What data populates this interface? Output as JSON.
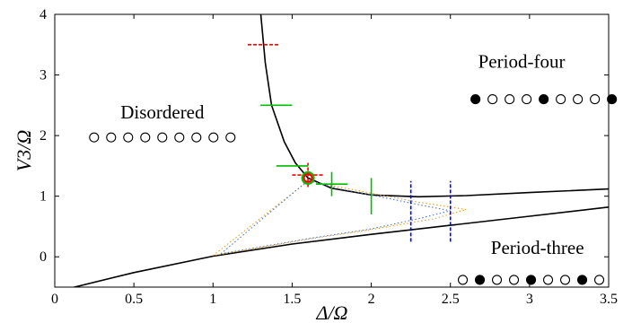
{
  "chart_data": {
    "type": "line",
    "xlabel": "Δ/Ω",
    "ylabel": "V3/Ω",
    "xlim": [
      0,
      3.5
    ],
    "ylim": [
      -0.5,
      4
    ],
    "xticks": [
      "0",
      "0.5",
      "1",
      "1.5",
      "2",
      "2.5",
      "3",
      "3.5"
    ],
    "yticks": [
      "0",
      "1",
      "2",
      "3",
      "4"
    ],
    "series": [
      {
        "color": "#000000",
        "style": "solid",
        "points": [
          [
            1.3,
            4.05
          ],
          [
            1.33,
            3.2
          ],
          [
            1.37,
            2.5
          ],
          [
            1.45,
            1.9
          ],
          [
            1.52,
            1.55
          ],
          [
            1.6,
            1.3
          ],
          [
            1.75,
            1.13
          ],
          [
            2.0,
            1.02
          ],
          [
            2.3,
            0.99
          ],
          [
            2.6,
            1.01
          ],
          [
            3.0,
            1.06
          ],
          [
            3.5,
            1.12
          ]
        ]
      },
      {
        "color": "#000000",
        "style": "solid",
        "points": [
          [
            0.0,
            -0.58
          ],
          [
            0.5,
            -0.26
          ],
          [
            1.0,
            0.01
          ],
          [
            1.5,
            0.21
          ],
          [
            2.0,
            0.37
          ],
          [
            2.5,
            0.52
          ],
          [
            3.0,
            0.67
          ],
          [
            3.5,
            0.82
          ]
        ]
      },
      {
        "color": "#e3a020",
        "style": "dotted",
        "points": [
          [
            1.0,
            0.02
          ],
          [
            1.6,
            1.25
          ],
          [
            1.8,
            1.15
          ],
          [
            2.0,
            1.05
          ],
          [
            2.3,
            0.9
          ],
          [
            2.6,
            0.78
          ],
          [
            2.4,
            0.63
          ],
          [
            2.0,
            0.45
          ],
          [
            1.6,
            0.29
          ],
          [
            1.0,
            0.02
          ]
        ]
      },
      {
        "color": "#4a78c8",
        "style": "dotted",
        "points": [
          [
            1.05,
            0.05
          ],
          [
            1.6,
            1.26
          ],
          [
            1.8,
            1.12
          ],
          [
            2.0,
            1.02
          ],
          [
            2.3,
            0.86
          ],
          [
            2.5,
            0.76
          ],
          [
            2.3,
            0.63
          ],
          [
            2.0,
            0.46
          ],
          [
            1.6,
            0.3
          ],
          [
            1.05,
            0.05
          ]
        ]
      }
    ],
    "error_bars": [
      {
        "color": "#ff0000",
        "style": "dashed",
        "x": 1.32,
        "y": 3.5,
        "xerr": 0.1,
        "yerr": 0
      },
      {
        "color": "#ff0000",
        "style": "dashed",
        "x": 1.6,
        "y": 1.35,
        "xerr": 0.1,
        "yerr": 0.2
      },
      {
        "color": "#00bb00",
        "style": "solid",
        "x": 1.4,
        "y": 2.5,
        "xerr": 0.1,
        "yerr": 0
      },
      {
        "color": "#00bb00",
        "style": "solid",
        "x": 1.5,
        "y": 1.5,
        "xerr": 0.1,
        "yerr": 0
      },
      {
        "color": "#00bb00",
        "style": "solid",
        "x": 1.75,
        "y": 1.2,
        "xerr": 0.1,
        "yerr": 0.2
      },
      {
        "color": "#00bb00",
        "style": "solid",
        "x": 2.0,
        "y": 1.0,
        "xerr": 0,
        "yerr": 0.3
      },
      {
        "color": "#0000ff",
        "style": "dashed",
        "x": 2.25,
        "y": 0.75,
        "xerr": 0,
        "yerr": 0.5
      },
      {
        "color": "#0000ff",
        "style": "dashed",
        "x": 2.5,
        "y": 0.75,
        "xerr": 0,
        "yerr": 0.5
      }
    ],
    "markers": [
      {
        "color": "#00bb00",
        "x": 1.6,
        "y": 1.3
      },
      {
        "color": "#ff0000",
        "x": 1.6,
        "y": 1.3
      }
    ],
    "annotations": [
      {
        "text": "Disordered",
        "x": 0.68,
        "y": 2.28
      },
      {
        "text": "Period-four",
        "x": 2.95,
        "y": 3.12
      },
      {
        "text": "Period-three",
        "x": 3.05,
        "y": 0.05
      }
    ],
    "site_patterns": [
      {
        "x": 0.22,
        "y": 1.97,
        "sites": [
          0,
          0,
          0,
          0,
          0,
          0,
          0,
          0,
          0
        ]
      },
      {
        "x": 2.63,
        "y": 2.6,
        "sites": [
          1,
          0,
          0,
          0,
          1,
          0,
          0,
          0,
          1
        ]
      },
      {
        "x": 2.55,
        "y": -0.38,
        "sites": [
          0,
          1,
          0,
          0,
          1,
          0,
          0,
          1,
          0
        ]
      }
    ]
  }
}
